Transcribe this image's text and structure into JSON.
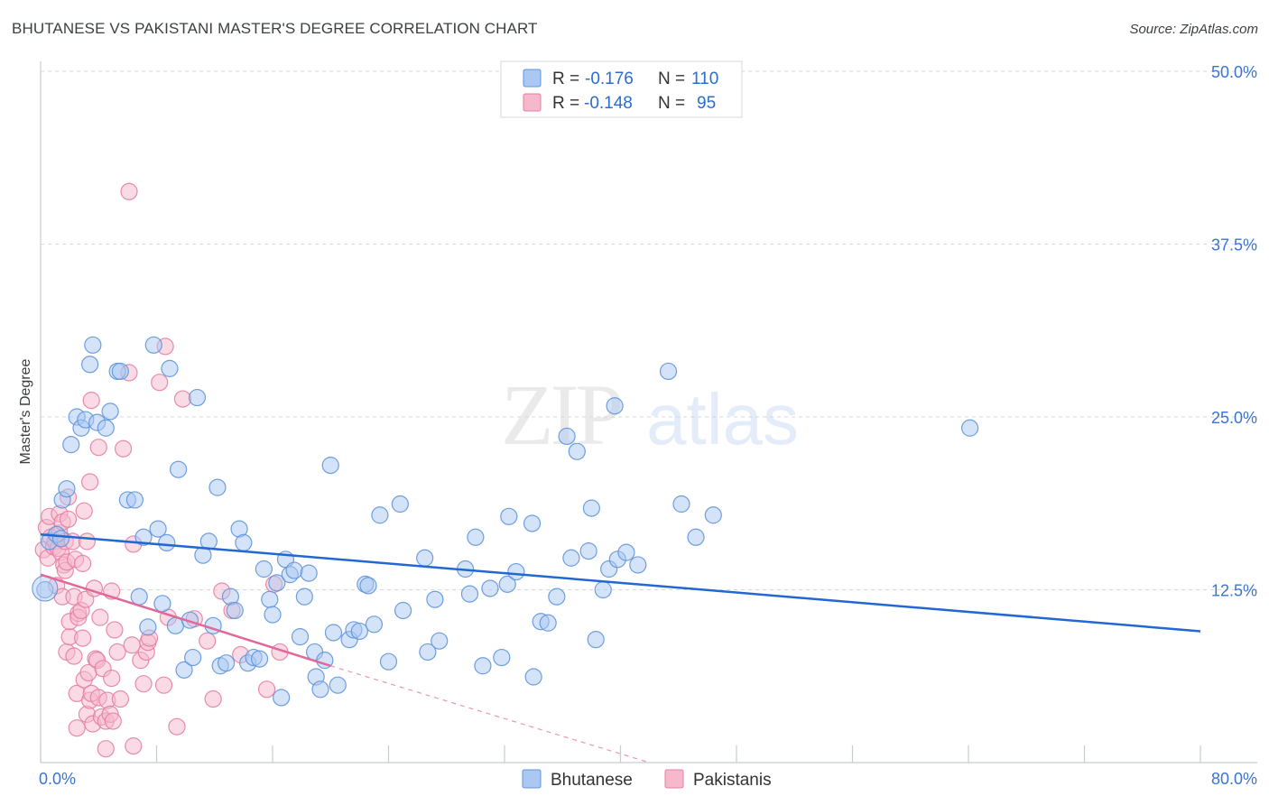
{
  "chart_data": {
    "type": "scatter",
    "title": "BHUTANESE VS PAKISTANI MASTER'S DEGREE CORRELATION CHART",
    "source": "Source: ZipAtlas.com",
    "xlabel": "",
    "ylabel": "Master's Degree",
    "xlim": [
      0,
      80
    ],
    "ylim": [
      0,
      50
    ],
    "x_tick_labels": [
      "0.0%",
      "80.0%"
    ],
    "y_tick_labels": [
      "12.5%",
      "25.0%",
      "37.5%",
      "50.0%"
    ],
    "y_ticks": [
      12.5,
      25.0,
      37.5,
      50.0
    ],
    "grid": true,
    "legend_position": "top-center",
    "watermark": "ZIPatlas",
    "colors": {
      "bhutanese_fill": "#aac8f2",
      "bhutanese_stroke": "#5f95dd",
      "bhutanese_line": "#2169d0",
      "pakistani_fill": "#f6b8cb",
      "pakistani_stroke": "#e57fa2",
      "pakistani_line": "#e0689a",
      "tick_text": "#3b74d1",
      "grid": "#d5d9de"
    },
    "legend": {
      "r_label": "R =",
      "n_label": "N =",
      "rows": [
        {
          "r": "-0.176",
          "n": "110"
        },
        {
          "r": "-0.148",
          "n": "95"
        }
      ]
    },
    "series": [
      {
        "name": "Bhutanese",
        "r": -0.176,
        "n": 110,
        "trend": {
          "x0": 0,
          "y0": 16.5,
          "x1": 80,
          "y1": 9.5
        },
        "points": [
          [
            0.3,
            12.5
          ],
          [
            0.6,
            16.0
          ],
          [
            1.1,
            16.5
          ],
          [
            1.4,
            16.2
          ],
          [
            1.5,
            19.0
          ],
          [
            1.8,
            19.8
          ],
          [
            2.1,
            23.0
          ],
          [
            2.5,
            25.0
          ],
          [
            2.8,
            24.2
          ],
          [
            3.1,
            24.8
          ],
          [
            3.4,
            28.8
          ],
          [
            3.6,
            30.2
          ],
          [
            3.9,
            24.6
          ],
          [
            4.5,
            24.2
          ],
          [
            4.8,
            25.4
          ],
          [
            5.3,
            28.3
          ],
          [
            5.5,
            28.3
          ],
          [
            6.0,
            19.0
          ],
          [
            6.5,
            19.0
          ],
          [
            6.8,
            12.0
          ],
          [
            7.1,
            16.3
          ],
          [
            7.4,
            9.8
          ],
          [
            7.8,
            30.2
          ],
          [
            8.1,
            16.9
          ],
          [
            8.4,
            11.5
          ],
          [
            8.7,
            15.9
          ],
          [
            8.9,
            28.5
          ],
          [
            9.5,
            21.2
          ],
          [
            9.3,
            9.9
          ],
          [
            9.9,
            6.7
          ],
          [
            10.3,
            10.3
          ],
          [
            10.5,
            7.6
          ],
          [
            10.8,
            26.4
          ],
          [
            11.2,
            15.0
          ],
          [
            11.6,
            16.0
          ],
          [
            11.9,
            9.9
          ],
          [
            12.2,
            19.9
          ],
          [
            12.4,
            7.0
          ],
          [
            12.8,
            7.2
          ],
          [
            13.1,
            12.0
          ],
          [
            13.4,
            11.0
          ],
          [
            13.7,
            16.9
          ],
          [
            14.0,
            15.9
          ],
          [
            14.3,
            7.2
          ],
          [
            14.7,
            7.6
          ],
          [
            15.1,
            7.5
          ],
          [
            15.4,
            14.0
          ],
          [
            15.8,
            11.8
          ],
          [
            16.0,
            10.7
          ],
          [
            16.3,
            13.0
          ],
          [
            16.6,
            4.7
          ],
          [
            16.9,
            14.7
          ],
          [
            17.2,
            13.6
          ],
          [
            17.5,
            13.9
          ],
          [
            17.9,
            9.1
          ],
          [
            18.2,
            12.0
          ],
          [
            18.5,
            13.7
          ],
          [
            18.9,
            8.0
          ],
          [
            19.0,
            6.2
          ],
          [
            19.3,
            5.3
          ],
          [
            19.6,
            7.4
          ],
          [
            20.0,
            21.5
          ],
          [
            20.2,
            9.4
          ],
          [
            20.5,
            5.6
          ],
          [
            21.3,
            8.9
          ],
          [
            21.6,
            9.6
          ],
          [
            22.0,
            9.5
          ],
          [
            22.4,
            12.9
          ],
          [
            22.6,
            12.8
          ],
          [
            23.0,
            10.0
          ],
          [
            23.4,
            17.9
          ],
          [
            24.0,
            7.3
          ],
          [
            24.8,
            18.7
          ],
          [
            25.0,
            11.0
          ],
          [
            26.5,
            14.8
          ],
          [
            26.7,
            8.0
          ],
          [
            27.2,
            11.8
          ],
          [
            27.5,
            8.8
          ],
          [
            29.3,
            14.0
          ],
          [
            29.6,
            12.2
          ],
          [
            30.0,
            16.3
          ],
          [
            30.5,
            7.0
          ],
          [
            31.0,
            12.6
          ],
          [
            31.8,
            7.6
          ],
          [
            32.2,
            12.9
          ],
          [
            32.3,
            17.8
          ],
          [
            32.8,
            13.8
          ],
          [
            33.9,
            17.3
          ],
          [
            34.0,
            6.2
          ],
          [
            34.5,
            10.2
          ],
          [
            35.0,
            10.1
          ],
          [
            35.6,
            12.0
          ],
          [
            36.3,
            23.6
          ],
          [
            36.6,
            14.8
          ],
          [
            37.0,
            22.5
          ],
          [
            37.8,
            15.3
          ],
          [
            38.0,
            18.4
          ],
          [
            38.3,
            8.9
          ],
          [
            38.8,
            12.5
          ],
          [
            39.2,
            14.0
          ],
          [
            39.6,
            25.8
          ],
          [
            39.8,
            14.7
          ],
          [
            40.4,
            15.2
          ],
          [
            41.2,
            14.3
          ],
          [
            43.3,
            28.3
          ],
          [
            44.2,
            18.7
          ],
          [
            45.2,
            16.3
          ],
          [
            46.4,
            17.9
          ],
          [
            64.1,
            24.2
          ]
        ]
      },
      {
        "name": "Pakistanis",
        "r": -0.148,
        "n": 95,
        "trend": {
          "x0": 0,
          "y0": 13.6,
          "x1": 20,
          "y1": 7.0
        },
        "trend_dashed": {
          "x0": 20,
          "y0": 7.0,
          "x1": 42,
          "y1": 0.0
        },
        "points": [
          [
            0.2,
            15.4
          ],
          [
            0.4,
            17.0
          ],
          [
            0.5,
            14.8
          ],
          [
            0.6,
            17.8
          ],
          [
            0.7,
            16.3
          ],
          [
            0.9,
            15.6
          ],
          [
            1.0,
            16.0
          ],
          [
            1.1,
            12.8
          ],
          [
            1.2,
            15.5
          ],
          [
            1.3,
            18.0
          ],
          [
            1.3,
            16.6
          ],
          [
            1.4,
            15.2
          ],
          [
            1.5,
            17.4
          ],
          [
            1.5,
            12.0
          ],
          [
            1.6,
            14.3
          ],
          [
            1.7,
            13.9
          ],
          [
            1.7,
            16.0
          ],
          [
            1.8,
            14.5
          ],
          [
            1.9,
            19.2
          ],
          [
            1.9,
            17.6
          ],
          [
            1.8,
            8.0
          ],
          [
            2.0,
            9.1
          ],
          [
            2.0,
            10.2
          ],
          [
            2.2,
            16.0
          ],
          [
            2.3,
            12.0
          ],
          [
            2.3,
            7.7
          ],
          [
            2.4,
            14.7
          ],
          [
            2.5,
            5.0
          ],
          [
            2.5,
            2.5
          ],
          [
            2.6,
            10.8
          ],
          [
            2.6,
            10.5
          ],
          [
            2.8,
            11.0
          ],
          [
            2.9,
            9.0
          ],
          [
            2.9,
            14.4
          ],
          [
            3.0,
            6.0
          ],
          [
            3.0,
            18.2
          ],
          [
            3.1,
            11.8
          ],
          [
            3.2,
            16.0
          ],
          [
            3.2,
            3.5
          ],
          [
            3.3,
            6.5
          ],
          [
            3.4,
            20.3
          ],
          [
            3.4,
            4.5
          ],
          [
            3.5,
            26.2
          ],
          [
            3.5,
            5.0
          ],
          [
            3.6,
            2.8
          ],
          [
            3.7,
            12.6
          ],
          [
            3.8,
            7.5
          ],
          [
            3.9,
            7.4
          ],
          [
            4.0,
            22.8
          ],
          [
            4.0,
            4.7
          ],
          [
            4.1,
            10.5
          ],
          [
            4.2,
            3.3
          ],
          [
            4.3,
            6.8
          ],
          [
            4.5,
            1.0
          ],
          [
            4.5,
            3.0
          ],
          [
            4.6,
            4.5
          ],
          [
            4.8,
            3.5
          ],
          [
            4.9,
            6.1
          ],
          [
            4.9,
            12.4
          ],
          [
            5.0,
            3.0
          ],
          [
            5.1,
            9.6
          ],
          [
            5.3,
            8.0
          ],
          [
            5.5,
            4.6
          ],
          [
            5.7,
            22.7
          ],
          [
            6.1,
            28.2
          ],
          [
            6.1,
            41.3
          ],
          [
            6.3,
            8.5
          ],
          [
            6.4,
            15.8
          ],
          [
            6.4,
            1.2
          ],
          [
            6.9,
            7.4
          ],
          [
            7.1,
            5.7
          ],
          [
            7.3,
            8.0
          ],
          [
            7.4,
            8.7
          ],
          [
            7.5,
            9.0
          ],
          [
            8.2,
            27.5
          ],
          [
            8.5,
            5.6
          ],
          [
            8.6,
            30.1
          ],
          [
            8.8,
            10.5
          ],
          [
            9.4,
            2.6
          ],
          [
            9.8,
            26.3
          ],
          [
            10.6,
            10.4
          ],
          [
            11.5,
            8.8
          ],
          [
            11.9,
            4.6
          ],
          [
            12.5,
            12.4
          ],
          [
            13.2,
            11.0
          ],
          [
            13.8,
            7.8
          ],
          [
            15.6,
            5.3
          ],
          [
            16.1,
            12.9
          ],
          [
            16.5,
            8.0
          ]
        ]
      }
    ]
  }
}
